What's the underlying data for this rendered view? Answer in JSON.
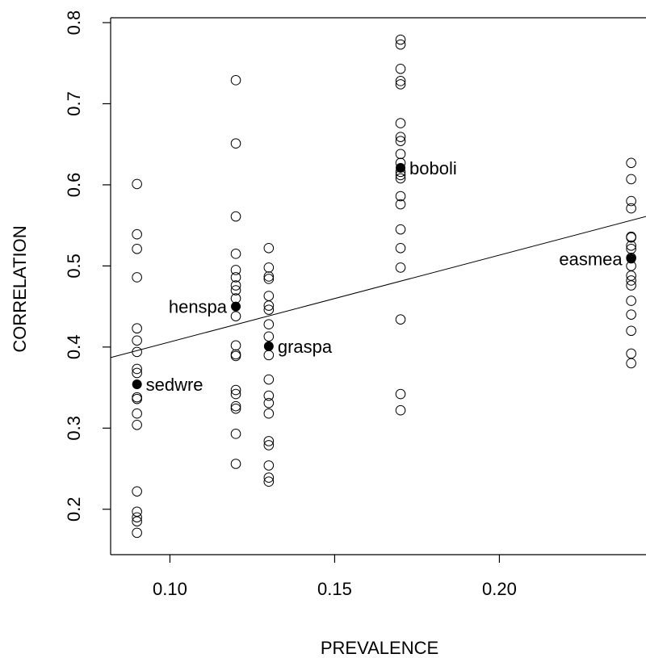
{
  "chart_data": {
    "type": "scatter",
    "title": "",
    "xlabel": "PREVALENCE",
    "ylabel": "CORRELATION",
    "xlim": [
      0.082,
      0.2445
    ],
    "ylim": [
      0.144,
      0.806
    ],
    "x_ticks": [
      {
        "value": 0.1,
        "label": "0.10"
      },
      {
        "value": 0.15,
        "label": "0.15"
      },
      {
        "value": 0.2,
        "label": "0.20"
      }
    ],
    "y_ticks": [
      {
        "value": 0.2,
        "label": "0.2"
      },
      {
        "value": 0.3,
        "label": "0.3"
      },
      {
        "value": 0.4,
        "label": "0.4"
      },
      {
        "value": 0.5,
        "label": "0.5"
      },
      {
        "value": 0.6,
        "label": "0.6"
      },
      {
        "value": 0.7,
        "label": "0.7"
      },
      {
        "value": 0.8,
        "label": "0.8"
      }
    ],
    "grid": false,
    "series": [
      {
        "marker": "open-circle",
        "points": [
          {
            "x": 0.09,
            "y": 0.601
          },
          {
            "x": 0.09,
            "y": 0.539
          },
          {
            "x": 0.09,
            "y": 0.521
          },
          {
            "x": 0.09,
            "y": 0.486
          },
          {
            "x": 0.09,
            "y": 0.423
          },
          {
            "x": 0.09,
            "y": 0.408
          },
          {
            "x": 0.09,
            "y": 0.394
          },
          {
            "x": 0.09,
            "y": 0.373
          },
          {
            "x": 0.09,
            "y": 0.368
          },
          {
            "x": 0.09,
            "y": 0.338
          },
          {
            "x": 0.09,
            "y": 0.336
          },
          {
            "x": 0.09,
            "y": 0.318
          },
          {
            "x": 0.09,
            "y": 0.304
          },
          {
            "x": 0.09,
            "y": 0.222
          },
          {
            "x": 0.09,
            "y": 0.197
          },
          {
            "x": 0.09,
            "y": 0.19
          },
          {
            "x": 0.09,
            "y": 0.185
          },
          {
            "x": 0.09,
            "y": 0.171
          },
          {
            "x": 0.12,
            "y": 0.729
          },
          {
            "x": 0.12,
            "y": 0.651
          },
          {
            "x": 0.12,
            "y": 0.561
          },
          {
            "x": 0.12,
            "y": 0.515
          },
          {
            "x": 0.12,
            "y": 0.495
          },
          {
            "x": 0.12,
            "y": 0.486
          },
          {
            "x": 0.12,
            "y": 0.476
          },
          {
            "x": 0.12,
            "y": 0.47
          },
          {
            "x": 0.12,
            "y": 0.46
          },
          {
            "x": 0.12,
            "y": 0.438
          },
          {
            "x": 0.12,
            "y": 0.402
          },
          {
            "x": 0.12,
            "y": 0.391
          },
          {
            "x": 0.12,
            "y": 0.389
          },
          {
            "x": 0.12,
            "y": 0.347
          },
          {
            "x": 0.12,
            "y": 0.342
          },
          {
            "x": 0.12,
            "y": 0.327
          },
          {
            "x": 0.12,
            "y": 0.324
          },
          {
            "x": 0.12,
            "y": 0.293
          },
          {
            "x": 0.12,
            "y": 0.256
          },
          {
            "x": 0.13,
            "y": 0.522
          },
          {
            "x": 0.13,
            "y": 0.498
          },
          {
            "x": 0.13,
            "y": 0.487
          },
          {
            "x": 0.13,
            "y": 0.484
          },
          {
            "x": 0.13,
            "y": 0.463
          },
          {
            "x": 0.13,
            "y": 0.451
          },
          {
            "x": 0.13,
            "y": 0.446
          },
          {
            "x": 0.13,
            "y": 0.428
          },
          {
            "x": 0.13,
            "y": 0.413
          },
          {
            "x": 0.13,
            "y": 0.39
          },
          {
            "x": 0.13,
            "y": 0.36
          },
          {
            "x": 0.13,
            "y": 0.34
          },
          {
            "x": 0.13,
            "y": 0.331
          },
          {
            "x": 0.13,
            "y": 0.318
          },
          {
            "x": 0.13,
            "y": 0.284
          },
          {
            "x": 0.13,
            "y": 0.279
          },
          {
            "x": 0.13,
            "y": 0.254
          },
          {
            "x": 0.13,
            "y": 0.239
          },
          {
            "x": 0.13,
            "y": 0.234
          },
          {
            "x": 0.17,
            "y": 0.779
          },
          {
            "x": 0.17,
            "y": 0.773
          },
          {
            "x": 0.17,
            "y": 0.743
          },
          {
            "x": 0.17,
            "y": 0.728
          },
          {
            "x": 0.17,
            "y": 0.724
          },
          {
            "x": 0.17,
            "y": 0.676
          },
          {
            "x": 0.17,
            "y": 0.659
          },
          {
            "x": 0.17,
            "y": 0.654
          },
          {
            "x": 0.17,
            "y": 0.638
          },
          {
            "x": 0.17,
            "y": 0.627
          },
          {
            "x": 0.17,
            "y": 0.616
          },
          {
            "x": 0.17,
            "y": 0.612
          },
          {
            "x": 0.17,
            "y": 0.608
          },
          {
            "x": 0.17,
            "y": 0.586
          },
          {
            "x": 0.17,
            "y": 0.576
          },
          {
            "x": 0.17,
            "y": 0.545
          },
          {
            "x": 0.17,
            "y": 0.522
          },
          {
            "x": 0.17,
            "y": 0.498
          },
          {
            "x": 0.17,
            "y": 0.434
          },
          {
            "x": 0.17,
            "y": 0.342
          },
          {
            "x": 0.17,
            "y": 0.322
          },
          {
            "x": 0.24,
            "y": 0.627
          },
          {
            "x": 0.24,
            "y": 0.607
          },
          {
            "x": 0.24,
            "y": 0.58
          },
          {
            "x": 0.24,
            "y": 0.571
          },
          {
            "x": 0.24,
            "y": 0.536
          },
          {
            "x": 0.24,
            "y": 0.535
          },
          {
            "x": 0.24,
            "y": 0.525
          },
          {
            "x": 0.24,
            "y": 0.521
          },
          {
            "x": 0.24,
            "y": 0.51
          },
          {
            "x": 0.24,
            "y": 0.5
          },
          {
            "x": 0.24,
            "y": 0.488
          },
          {
            "x": 0.24,
            "y": 0.482
          },
          {
            "x": 0.24,
            "y": 0.476
          },
          {
            "x": 0.24,
            "y": 0.457
          },
          {
            "x": 0.24,
            "y": 0.44
          },
          {
            "x": 0.24,
            "y": 0.42
          },
          {
            "x": 0.24,
            "y": 0.392
          },
          {
            "x": 0.24,
            "y": 0.38
          }
        ]
      },
      {
        "marker": "filled-circle",
        "points": [
          {
            "x": 0.09,
            "y": 0.354,
            "label": "sedwre",
            "label_side": "right"
          },
          {
            "x": 0.12,
            "y": 0.45,
            "label": "henspa",
            "label_side": "left"
          },
          {
            "x": 0.13,
            "y": 0.401,
            "label": "graspa",
            "label_side": "right"
          },
          {
            "x": 0.17,
            "y": 0.621,
            "label": "boboli",
            "label_side": "right"
          },
          {
            "x": 0.24,
            "y": 0.509,
            "label": "easmea",
            "label_side": "left"
          }
        ]
      }
    ],
    "trend_line": {
      "x": [
        0.082,
        0.2445
      ],
      "y": [
        0.387,
        0.561
      ]
    }
  }
}
